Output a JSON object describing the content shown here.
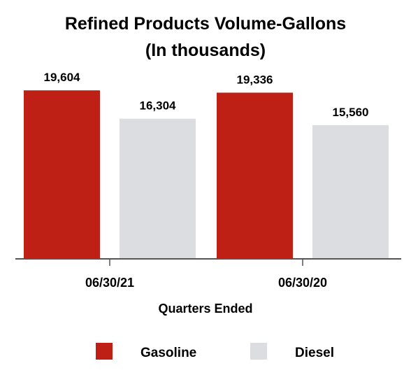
{
  "chart_data": {
    "type": "bar",
    "title": "Refined Products Volume-Gallons",
    "subtitle": "(In thousands)",
    "xlabel": "Quarters Ended",
    "ylabel": "",
    "categories": [
      "06/30/21",
      "06/30/20"
    ],
    "series": [
      {
        "name": "Gasoline",
        "color": "#be2016",
        "values": [
          19604,
          19336
        ],
        "labels": [
          "19,604",
          "19,336"
        ]
      },
      {
        "name": "Diesel",
        "color": "#dcdde1",
        "values": [
          16304,
          15560
        ],
        "labels": [
          "16,304",
          "15,560"
        ]
      }
    ],
    "ylim": [
      0,
      21000
    ],
    "grid": false,
    "legend_position": "bottom"
  },
  "colors": {
    "axis": "#555555",
    "text": "#000000"
  }
}
